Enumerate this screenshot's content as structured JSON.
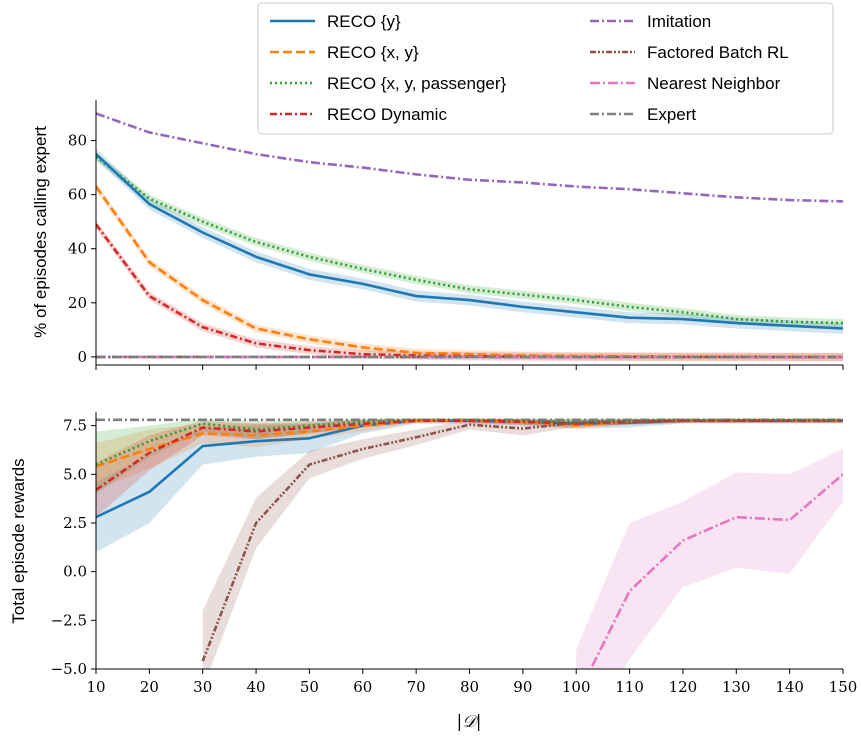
{
  "colors": {
    "reco_y": "#1f77b4",
    "reco_xy": "#ff7f0e",
    "reco_xyp": "#2ca02c",
    "reco_dyn": "#d62728",
    "imitation": "#9467bd",
    "factored": "#8c564b",
    "nn": "#e377c2",
    "expert": "#7f7f7f"
  },
  "legend": {
    "placement": "top-center",
    "entries": [
      {
        "key": "reco_y",
        "label": "RECO {y}"
      },
      {
        "key": "reco_xy",
        "label": "RECO {x, y}"
      },
      {
        "key": "reco_xyp",
        "label": "RECO {x, y, passenger}"
      },
      {
        "key": "reco_dyn",
        "label": "RECO Dynamic"
      },
      {
        "key": "imitation",
        "label": "Imitation"
      },
      {
        "key": "factored",
        "label": "Factored Batch RL"
      },
      {
        "key": "nn",
        "label": "Nearest Neighbor"
      },
      {
        "key": "expert",
        "label": "Expert"
      }
    ]
  },
  "chart_data": [
    {
      "type": "line",
      "ylabel": "% of episodes calling expert",
      "xlabel": "",
      "x": [
        10,
        20,
        30,
        40,
        50,
        60,
        70,
        80,
        90,
        100,
        110,
        120,
        130,
        140,
        150
      ],
      "xticks": [
        10,
        20,
        30,
        40,
        50,
        60,
        70,
        80,
        90,
        100,
        110,
        120,
        130,
        140,
        150
      ],
      "xlim": [
        10,
        150
      ],
      "ylim": [
        -3,
        95
      ],
      "yticks": [
        0,
        20,
        40,
        60,
        80
      ],
      "ytick_labels": [
        "0",
        "20",
        "40",
        "60",
        "80"
      ],
      "grid": false,
      "series": [
        {
          "key": "imitation",
          "name": "Imitation",
          "values": [
            90,
            83,
            79,
            75,
            72,
            70,
            67.5,
            65.5,
            64.5,
            63,
            62,
            60.5,
            59,
            58,
            57.5
          ]
        },
        {
          "key": "reco_xyp",
          "name": "RECO {x, y, passenger}",
          "values": [
            74,
            58.5,
            50,
            42.5,
            37,
            32.5,
            28.5,
            25,
            23,
            21,
            18.5,
            16.5,
            14,
            13,
            12.5
          ],
          "band": 1.5
        },
        {
          "key": "reco_y",
          "name": "RECO {y}",
          "values": [
            75,
            56.5,
            46,
            37,
            30.5,
            27,
            22.5,
            21,
            18.5,
            16.5,
            14.5,
            14,
            12.5,
            11.5,
            10.5
          ],
          "band": 2
        },
        {
          "key": "reco_xy",
          "name": "RECO {x, y}",
          "values": [
            63,
            35,
            21,
            10.5,
            6.5,
            3.5,
            1.5,
            1,
            0.5,
            0.3,
            0.2,
            0.1,
            0.1,
            0,
            0
          ],
          "band": 1.5
        },
        {
          "key": "reco_dyn",
          "name": "RECO Dynamic",
          "values": [
            49,
            22.5,
            11,
            5,
            2.5,
            1,
            0.5,
            0.2,
            0.1,
            0,
            0,
            0,
            0,
            0,
            0
          ],
          "band": 1.5
        },
        {
          "key": "factored",
          "name": "Factored Batch RL",
          "values": [
            0,
            0,
            0,
            0,
            0,
            0,
            0,
            0,
            0,
            0,
            0,
            0,
            0,
            0,
            0
          ]
        },
        {
          "key": "nn",
          "name": "Nearest Neighbor",
          "values": [
            0,
            0,
            0,
            0,
            0,
            0,
            0,
            0,
            0,
            0,
            0,
            0,
            0,
            0,
            0
          ]
        },
        {
          "key": "expert",
          "name": "Expert",
          "values": [
            0,
            0,
            0,
            0,
            0,
            0,
            0,
            0,
            0,
            0,
            0,
            0,
            0,
            0,
            0
          ]
        }
      ]
    },
    {
      "type": "line",
      "ylabel": "Total episode rewards",
      "xlabel": "|𝒟|",
      "x": [
        10,
        20,
        30,
        40,
        50,
        60,
        70,
        80,
        90,
        100,
        110,
        120,
        130,
        140,
        150
      ],
      "xticks": [
        10,
        20,
        30,
        40,
        50,
        60,
        70,
        80,
        90,
        100,
        110,
        120,
        130,
        140,
        150
      ],
      "xtick_labels": [
        "10",
        "20",
        "30",
        "40",
        "50",
        "60",
        "70",
        "80",
        "90",
        "100",
        "110",
        "120",
        "130",
        "140",
        "150"
      ],
      "xlim": [
        10,
        150
      ],
      "ylim": [
        -5,
        8.2
      ],
      "yticks": [
        -5,
        -2.5,
        0,
        2.5,
        5,
        7.5
      ],
      "ytick_labels": [
        "−5.0",
        "−2.5",
        "0.0",
        "2.5",
        "5.0",
        "7.5"
      ],
      "grid": false,
      "series": [
        {
          "key": "expert",
          "name": "Expert",
          "x": [
            10,
            150
          ],
          "values": [
            7.8,
            7.8
          ]
        },
        {
          "key": "reco_y",
          "name": "RECO {y}",
          "values": [
            2.8,
            4.1,
            6.45,
            6.7,
            6.85,
            7.5,
            7.75,
            7.75,
            7.7,
            7.6,
            7.65,
            7.75,
            7.75,
            7.75,
            7.75
          ],
          "upper": [
            4.6,
            6.0,
            7.4,
            7.5,
            7.6,
            7.8,
            7.85,
            7.85,
            7.85,
            7.8,
            7.8,
            7.85,
            7.85,
            7.85,
            7.85
          ],
          "lower": [
            1.0,
            2.5,
            5.5,
            5.9,
            6.1,
            7.1,
            7.6,
            7.6,
            7.5,
            7.35,
            7.4,
            7.6,
            7.6,
            7.6,
            7.6
          ]
        },
        {
          "key": "reco_xy",
          "name": "RECO {x, y}",
          "values": [
            5.4,
            6.3,
            7.1,
            7.0,
            7.2,
            7.5,
            7.75,
            7.75,
            7.7,
            7.5,
            7.7,
            7.75,
            7.75,
            7.75,
            7.75
          ],
          "upper": [
            6.6,
            7.3,
            7.6,
            7.6,
            7.6,
            7.8,
            7.85,
            7.85,
            7.85,
            7.7,
            7.85,
            7.85,
            7.85,
            7.85,
            7.85
          ],
          "lower": [
            4.2,
            5.3,
            6.6,
            6.4,
            6.8,
            7.2,
            7.65,
            7.65,
            7.55,
            7.3,
            7.55,
            7.65,
            7.65,
            7.65,
            7.65
          ]
        },
        {
          "key": "reco_xyp",
          "name": "RECO {x, y, passenger}",
          "values": [
            5.5,
            6.7,
            7.6,
            7.3,
            7.5,
            7.7,
            7.8,
            7.8,
            7.75,
            7.7,
            7.75,
            7.8,
            7.8,
            7.8,
            7.8
          ],
          "upper": [
            7.2,
            7.5,
            7.85,
            7.75,
            7.8,
            7.85,
            7.85,
            7.85,
            7.85,
            7.85,
            7.85,
            7.85,
            7.85,
            7.85,
            7.85
          ],
          "lower": [
            4.0,
            5.9,
            7.2,
            6.8,
            7.1,
            7.5,
            7.7,
            7.7,
            7.6,
            7.5,
            7.6,
            7.7,
            7.7,
            7.7,
            7.7
          ]
        },
        {
          "key": "reco_dyn",
          "name": "RECO Dynamic",
          "values": [
            4.2,
            6.1,
            7.4,
            7.2,
            7.4,
            7.6,
            7.75,
            7.75,
            7.7,
            7.6,
            7.7,
            7.75,
            7.75,
            7.75,
            7.75
          ],
          "upper": [
            5.6,
            7.0,
            7.75,
            7.6,
            7.7,
            7.8,
            7.85,
            7.85,
            7.85,
            7.75,
            7.85,
            7.85,
            7.85,
            7.85,
            7.85
          ],
          "lower": [
            2.8,
            5.2,
            7.0,
            6.8,
            7.1,
            7.4,
            7.65,
            7.65,
            7.55,
            7.45,
            7.55,
            7.65,
            7.65,
            7.65,
            7.65
          ]
        },
        {
          "key": "factored",
          "name": "Factored Batch RL",
          "values": [
            null,
            null,
            -4.6,
            2.5,
            5.5,
            6.3,
            6.9,
            7.55,
            7.35,
            7.65,
            7.7,
            7.75,
            7.75,
            7.75,
            7.75
          ],
          "upper": [
            null,
            null,
            -2.0,
            3.8,
            6.2,
            6.8,
            7.3,
            7.8,
            7.7,
            7.85,
            7.85,
            7.85,
            7.85,
            7.85,
            7.85
          ],
          "lower": [
            null,
            null,
            -6.0,
            1.2,
            4.8,
            5.8,
            6.5,
            7.3,
            7.0,
            7.45,
            7.55,
            7.65,
            7.65,
            7.65,
            7.65
          ]
        },
        {
          "key": "nn",
          "name": "Nearest Neighbor",
          "values": [
            null,
            null,
            null,
            null,
            null,
            null,
            null,
            null,
            null,
            -6.5,
            -1.0,
            1.6,
            2.8,
            2.65,
            5.0
          ],
          "upper": [
            null,
            null,
            null,
            null,
            null,
            null,
            null,
            null,
            null,
            -4.0,
            2.5,
            3.6,
            5.1,
            5.0,
            6.3
          ],
          "lower": [
            null,
            null,
            null,
            null,
            null,
            null,
            null,
            null,
            null,
            -9.0,
            -4.5,
            -0.8,
            0.2,
            -0.1,
            3.6
          ]
        }
      ]
    }
  ]
}
